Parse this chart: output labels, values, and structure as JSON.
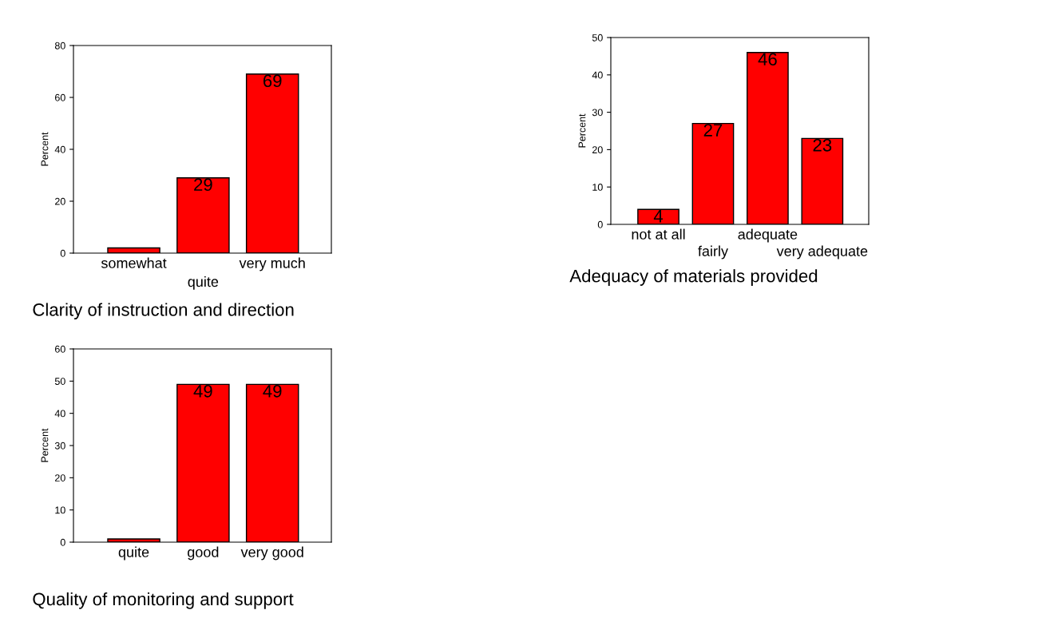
{
  "chart_data": [
    {
      "type": "bar",
      "xlabel": "Clarity of instruction and direction",
      "ylabel": "Percent",
      "categories": [
        "somewhat",
        "quite",
        "very much"
      ],
      "values": [
        2,
        29,
        69
      ],
      "value_labels": [
        null,
        "29",
        "69"
      ],
      "color": "#ff0000",
      "ylim": [
        0,
        80
      ],
      "yticks": [
        0,
        20,
        40,
        60,
        80
      ],
      "grid": false,
      "legend": false
    },
    {
      "type": "bar",
      "xlabel": "Adequacy of materials provided",
      "ylabel": "Percent",
      "categories": [
        "not at all",
        "fairly",
        "adequate",
        "very adequate"
      ],
      "values": [
        4,
        27,
        46,
        23
      ],
      "value_labels": [
        "4",
        "27",
        "46",
        "23"
      ],
      "color": "#ff0000",
      "ylim": [
        0,
        50
      ],
      "yticks": [
        0,
        10,
        20,
        30,
        40,
        50
      ],
      "grid": false,
      "legend": false
    },
    {
      "type": "bar",
      "xlabel": "Quality of monitoring and support",
      "ylabel": "Percent",
      "categories": [
        "quite",
        "good",
        "very good"
      ],
      "values": [
        1,
        49,
        49
      ],
      "value_labels": [
        null,
        "49",
        "49"
      ],
      "color": "#ff0000",
      "ylim": [
        0,
        60
      ],
      "yticks": [
        0,
        10,
        20,
        30,
        40,
        50,
        60
      ],
      "grid": false,
      "legend": false
    }
  ]
}
